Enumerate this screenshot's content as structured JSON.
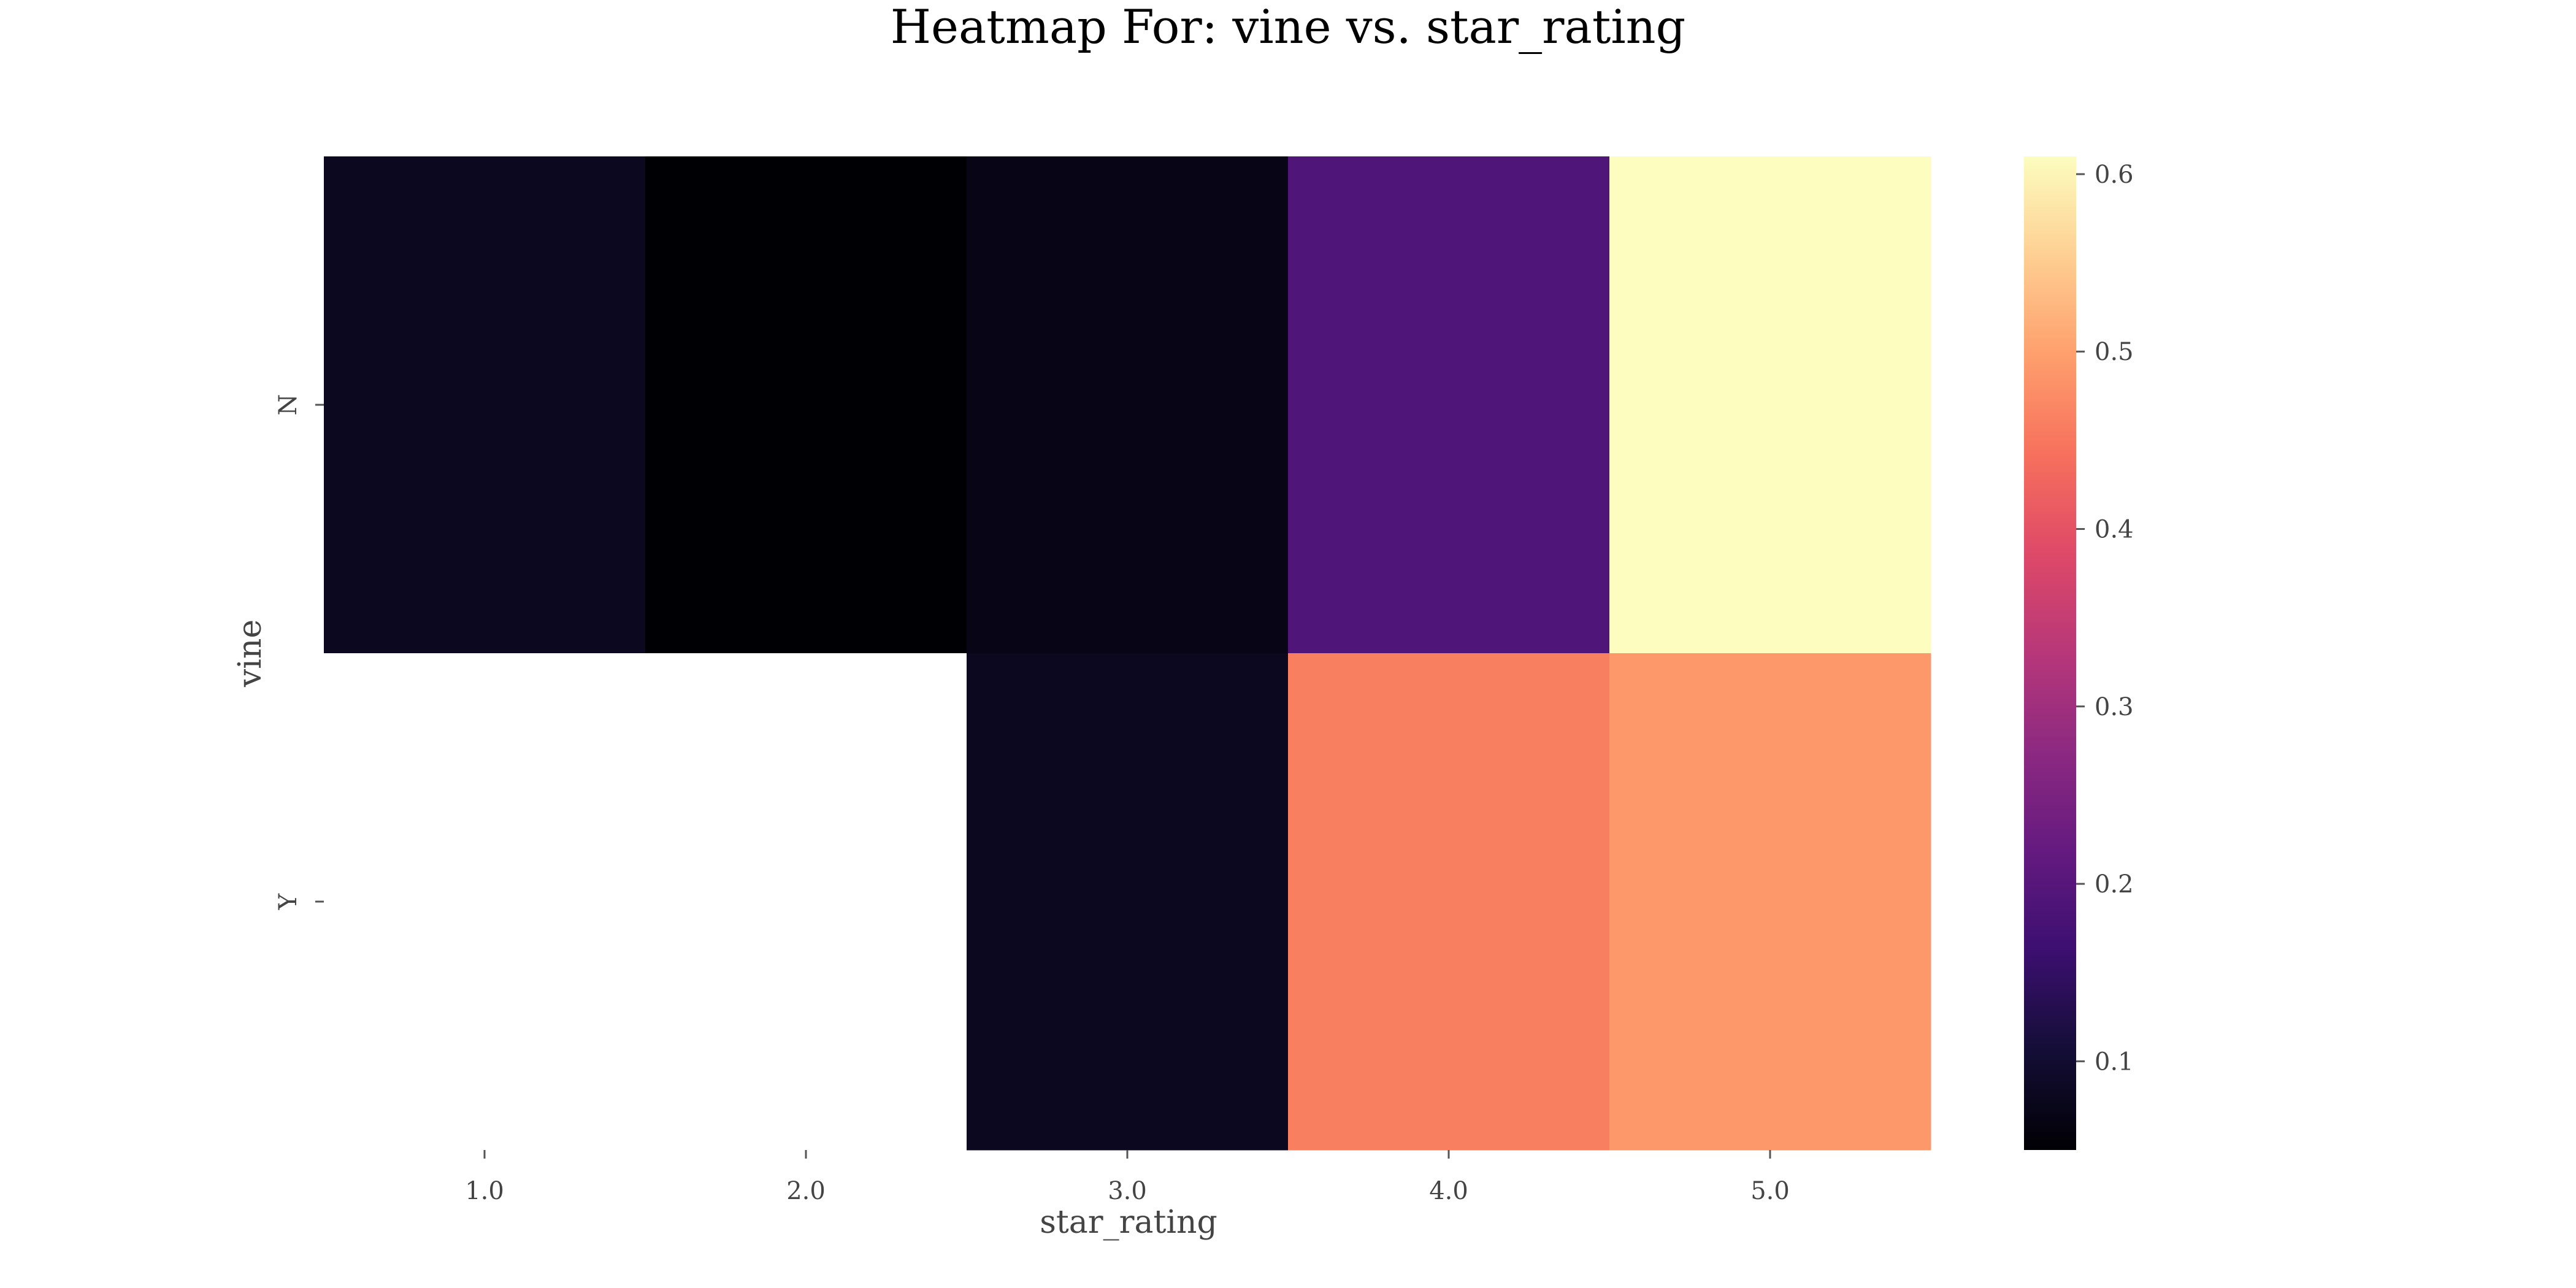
{
  "chart_data": {
    "type": "heatmap",
    "title": "Heatmap For: vine vs. star_rating",
    "xlabel": "star_rating",
    "ylabel": "vine",
    "x_categories": [
      "1.0",
      "2.0",
      "3.0",
      "4.0",
      "5.0"
    ],
    "y_categories": [
      "N",
      "Y"
    ],
    "values": [
      [
        0.08,
        0.05,
        0.07,
        0.19,
        0.61
      ],
      [
        null,
        null,
        0.08,
        0.46,
        0.49
      ]
    ],
    "colormap": "magma",
    "colorbar": {
      "range": [
        0.05,
        0.61
      ],
      "ticks": [
        "0.1",
        "0.2",
        "0.3",
        "0.4",
        "0.5",
        "0.6"
      ],
      "position": "right"
    },
    "grid": false,
    "missing_cell_color": "#ffffff"
  }
}
